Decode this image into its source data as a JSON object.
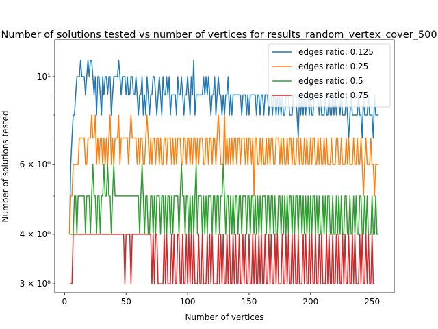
{
  "chart_data": {
    "type": "line",
    "title": "Number of solutions tested vs number of vertices for results_random_vertex_cover_500",
    "xlabel": "Number of vertices",
    "ylabel": "Number of solutions tested",
    "xlim": [
      -8,
      268
    ],
    "ylim": [
      2.85,
      12.4
    ],
    "yscale": "log",
    "x_ticks": [
      0,
      50,
      100,
      150,
      200,
      250
    ],
    "y_ticks": [
      {
        "value": 3,
        "label": "3 × 10⁰"
      },
      {
        "value": 4,
        "label": "4 × 10⁰"
      },
      {
        "value": 6,
        "label": "6 × 10⁰"
      },
      {
        "value": 10,
        "label": "10¹"
      }
    ],
    "y_minor_ticks": [
      5,
      7,
      8,
      9
    ],
    "grid": false,
    "legend_position": "top-right",
    "x_range": [
      4,
      255
    ],
    "series": [
      {
        "name": "edges ratio: 0.125",
        "color": "#1f77b4",
        "values": [
          4,
          6,
          7,
          8,
          8,
          9,
          10,
          10,
          10,
          11,
          10,
          10,
          10,
          9,
          10,
          11,
          10,
          11,
          11,
          10,
          9,
          10,
          8,
          10,
          10,
          9,
          8,
          10,
          9,
          10,
          10,
          9,
          10,
          10,
          8,
          9,
          10,
          10,
          10,
          10,
          11,
          10,
          9,
          10,
          10,
          10,
          9,
          10,
          9,
          9,
          10,
          10,
          9,
          9,
          10,
          9,
          8,
          9,
          9,
          10,
          8,
          9,
          8,
          10,
          9,
          8,
          9,
          9,
          10,
          10,
          9,
          8,
          9,
          10,
          9,
          8,
          10,
          9,
          9,
          10,
          9,
          10,
          8,
          9,
          9,
          9,
          9,
          8,
          10,
          9,
          9,
          10,
          9,
          8,
          9,
          9,
          10,
          9,
          8,
          10,
          9,
          11,
          8,
          9,
          9,
          9,
          9,
          9,
          9,
          10,
          9,
          10,
          9,
          10,
          9,
          8,
          9,
          9,
          10,
          8,
          9,
          10,
          9,
          9,
          8,
          9,
          8,
          9,
          9,
          10,
          8,
          9,
          8,
          9,
          9,
          9,
          9,
          9,
          9,
          9,
          8,
          9,
          9,
          9,
          8,
          9,
          8,
          9,
          9,
          9,
          9,
          9,
          8,
          9,
          9,
          8,
          9,
          9,
          8,
          9,
          9,
          9,
          8,
          9,
          9,
          8,
          9,
          9,
          8,
          9,
          8,
          9,
          8,
          9,
          8,
          8,
          9,
          9,
          9,
          8,
          8,
          8,
          9,
          9,
          9,
          8,
          7,
          9,
          8,
          9,
          8,
          9,
          8,
          9,
          9,
          8,
          9,
          8,
          8,
          9,
          9,
          9,
          9,
          8,
          9,
          8,
          8,
          8,
          9,
          8,
          8,
          9,
          8,
          8,
          9,
          8,
          9,
          8,
          9,
          9,
          8,
          9,
          8,
          8,
          8,
          9,
          8,
          7,
          8,
          9,
          8,
          8,
          8,
          8,
          8,
          9,
          8,
          8,
          7,
          9,
          8,
          8,
          8,
          9,
          8,
          8,
          8,
          7,
          9,
          8,
          8,
          8
        ]
      },
      {
        "name": "edges ratio: 0.25",
        "color": "#ff7f0e",
        "values": [
          4,
          5,
          5,
          6,
          6,
          6,
          6,
          6,
          7,
          7,
          7,
          7,
          7,
          6,
          6,
          7,
          7,
          7,
          8,
          7,
          7,
          8,
          6,
          7,
          6,
          7,
          7,
          6,
          7,
          6,
          7,
          6,
          7,
          8,
          6,
          7,
          6,
          7,
          7,
          7,
          8,
          6,
          7,
          7,
          7,
          7,
          7,
          7,
          6,
          7,
          8,
          7,
          7,
          7,
          7,
          6,
          7,
          6,
          7,
          7,
          6,
          6,
          7,
          8,
          7,
          6,
          7,
          6,
          7,
          7,
          6,
          7,
          7,
          6,
          7,
          6,
          6,
          7,
          7,
          6,
          7,
          7,
          7,
          6,
          7,
          6,
          7,
          6,
          7,
          7,
          7,
          6,
          6,
          7,
          7,
          6,
          7,
          7,
          6,
          7,
          6,
          7,
          7,
          6,
          7,
          6,
          7,
          7,
          7,
          6,
          6,
          7,
          7,
          6,
          7,
          7,
          6,
          7,
          7,
          6,
          7,
          8,
          7,
          6,
          6,
          6,
          8,
          6,
          7,
          6,
          7,
          6,
          7,
          6,
          7,
          7,
          6,
          7,
          7,
          6,
          7,
          7,
          7,
          6,
          7,
          6,
          7,
          7,
          6,
          7,
          5,
          7,
          7,
          6,
          6,
          7,
          6,
          7,
          6,
          6,
          7,
          6,
          7,
          6,
          7,
          7,
          6,
          6,
          7,
          7,
          7,
          6,
          7,
          6,
          7,
          6,
          6,
          7,
          6,
          7,
          7,
          6,
          7,
          6,
          6,
          7,
          7,
          6,
          7,
          6,
          6,
          7,
          6,
          7,
          6,
          6,
          7,
          6,
          7,
          7,
          6,
          6,
          7,
          6,
          7,
          6,
          6,
          7,
          6,
          7,
          6,
          6,
          6,
          7,
          6,
          6,
          6,
          7,
          7,
          6,
          6,
          7,
          6,
          6,
          6,
          7,
          6,
          7,
          6,
          6,
          6,
          7,
          6,
          6,
          7,
          6,
          6,
          7,
          6,
          5,
          6,
          7,
          6,
          6,
          6,
          7,
          6,
          6,
          5,
          6,
          6,
          6
        ]
      },
      {
        "name": "edges ratio: 0.5",
        "color": "#2ca02c",
        "values": [
          4,
          4,
          4,
          4,
          5,
          5,
          4,
          5,
          5,
          5,
          5,
          5,
          5,
          4,
          5,
          5,
          5,
          4,
          5,
          6,
          5,
          5,
          4,
          5,
          5,
          4,
          5,
          5,
          6,
          5,
          5,
          6,
          5,
          5,
          4,
          5,
          6,
          5,
          5,
          5,
          5,
          5,
          5,
          5,
          5,
          5,
          5,
          5,
          5,
          5,
          5,
          5,
          5,
          5,
          5,
          5,
          5,
          4,
          5,
          6,
          5,
          4,
          5,
          5,
          4,
          4,
          5,
          5,
          4,
          5,
          4,
          5,
          5,
          5,
          4,
          5,
          5,
          4,
          5,
          4,
          5,
          5,
          4,
          5,
          4,
          5,
          5,
          5,
          5,
          4,
          5,
          6,
          5,
          5,
          4,
          5,
          5,
          4,
          5,
          4,
          5,
          4,
          5,
          6,
          4,
          5,
          5,
          5,
          4,
          5,
          4,
          5,
          4,
          5,
          5,
          5,
          4,
          5,
          5,
          4,
          5,
          5,
          4,
          5,
          5,
          6,
          5,
          4,
          5,
          5,
          4,
          5,
          4,
          5,
          4,
          5,
          5,
          4,
          5,
          5,
          4,
          5,
          5,
          5,
          4,
          5,
          5,
          4,
          5,
          5,
          4,
          5,
          4,
          5,
          4,
          5,
          4,
          5,
          5,
          5,
          4,
          5,
          5,
          4,
          5,
          5,
          4,
          5,
          4,
          4,
          5,
          5,
          4,
          5,
          4,
          5,
          4,
          5,
          4,
          5,
          5,
          4,
          5,
          4,
          5,
          5,
          4,
          5,
          5,
          4,
          5,
          4,
          5,
          4,
          5,
          4,
          5,
          4,
          5,
          5,
          4,
          5,
          4,
          5,
          4,
          4,
          5,
          4,
          5,
          4,
          5,
          5,
          4,
          4,
          5,
          4,
          4,
          5,
          4,
          5,
          4,
          5,
          4,
          4,
          5,
          5,
          4,
          4,
          5,
          4,
          4,
          5,
          4,
          5,
          4,
          4,
          5,
          5,
          4,
          4,
          5,
          4,
          5,
          4,
          4,
          4,
          5,
          4,
          4,
          5,
          4,
          4
        ]
      },
      {
        "name": "edges ratio: 0.75",
        "color": "#d62728",
        "values": [
          3,
          3,
          3,
          4,
          4,
          4,
          4,
          4,
          4,
          4,
          4,
          4,
          4,
          4,
          4,
          4,
          4,
          4,
          4,
          4,
          4,
          4,
          4,
          4,
          4,
          4,
          4,
          4,
          4,
          4,
          4,
          4,
          4,
          4,
          4,
          4,
          4,
          4,
          4,
          4,
          4,
          4,
          4,
          4,
          4,
          3,
          4,
          4,
          4,
          4,
          3,
          4,
          4,
          4,
          4,
          4,
          4,
          4,
          4,
          4,
          4,
          4,
          4,
          4,
          4,
          4,
          4,
          3,
          4,
          3,
          4,
          4,
          3,
          3,
          3,
          3,
          3,
          4,
          3,
          4,
          3,
          3,
          3,
          4,
          3,
          4,
          3,
          3,
          4,
          4,
          3,
          3,
          4,
          3,
          3,
          4,
          3,
          4,
          3,
          4,
          3,
          4,
          3,
          3,
          3,
          4,
          3,
          3,
          4,
          3,
          3,
          3,
          4,
          3,
          4,
          3,
          4,
          3,
          3,
          3,
          3,
          4,
          3,
          4,
          3,
          4,
          3,
          3,
          4,
          3,
          4,
          3,
          3,
          4,
          3,
          4,
          3,
          3,
          4,
          3,
          3,
          4,
          3,
          4,
          3,
          3,
          4,
          3,
          3,
          4,
          3,
          4,
          3,
          3,
          4,
          3,
          4,
          3,
          3,
          4,
          3,
          3,
          4,
          3,
          4,
          3,
          3,
          4,
          3,
          4,
          3,
          3,
          3,
          4,
          3,
          3,
          4,
          3,
          4,
          3,
          3,
          4,
          3,
          4,
          3,
          3,
          4,
          3,
          3,
          3,
          4,
          3,
          4,
          3,
          3,
          4,
          3,
          4,
          3,
          3,
          4,
          3,
          3,
          4,
          3,
          4,
          3,
          3,
          3,
          4,
          3,
          4,
          3,
          3,
          4,
          3,
          3,
          4,
          3,
          4,
          3,
          3,
          4,
          3,
          4,
          3,
          3,
          4,
          3,
          3,
          4,
          3,
          4,
          3,
          3,
          3,
          4,
          3,
          4,
          3,
          3,
          4,
          3,
          4,
          3,
          3,
          4,
          3,
          3
        ]
      }
    ]
  }
}
